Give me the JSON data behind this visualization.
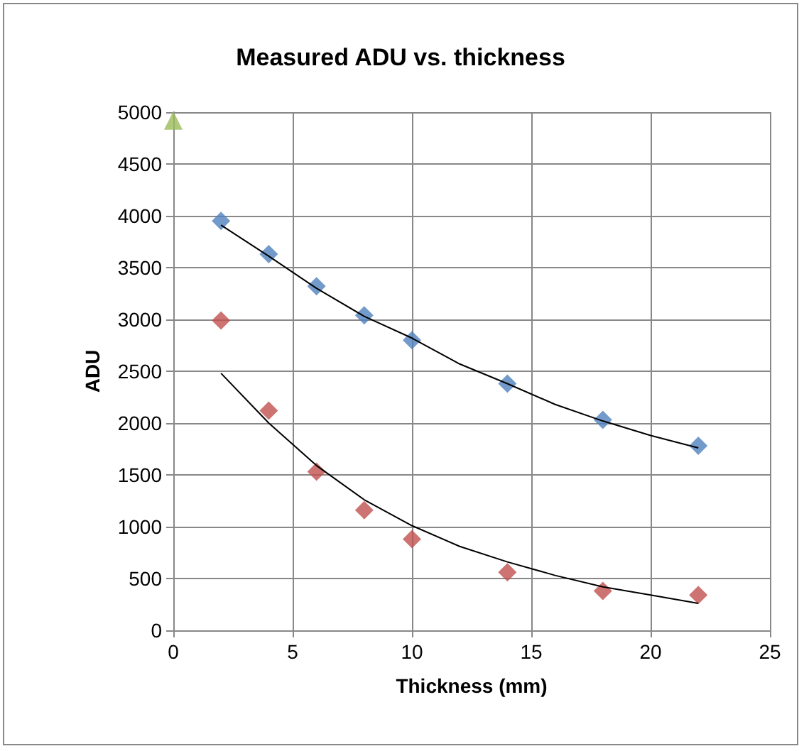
{
  "chart_data": {
    "type": "scatter",
    "title": "Measured ADU vs. thickness",
    "xlabel": "Thickness (mm)",
    "ylabel": "ADU",
    "xlim": [
      0,
      25
    ],
    "xticks": [
      0,
      5,
      10,
      15,
      20,
      25
    ],
    "ylim": [
      0,
      5000
    ],
    "yticks": [
      0,
      500,
      1000,
      1500,
      2000,
      2500,
      3000,
      3500,
      4000,
      4500,
      5000
    ],
    "grid": true,
    "marker": "diamond",
    "series": [
      {
        "color": "#4f81bd",
        "x": [
          2,
          4,
          6,
          8,
          10,
          14,
          18,
          22
        ],
        "values": [
          3950,
          3630,
          3320,
          3040,
          2800,
          2380,
          2030,
          1780
        ]
      },
      {
        "color": "#c0504d",
        "x": [
          2,
          4,
          6,
          8,
          10,
          14,
          18,
          22
        ],
        "values": [
          2990,
          2120,
          1530,
          1160,
          880,
          560,
          380,
          340
        ]
      },
      {
        "color": "#9bbb59",
        "marker": "triangle",
        "x": [
          0
        ],
        "values": [
          4920
        ]
      },
      {
        "type": "line",
        "color": "#000000",
        "marker": "none",
        "x": [
          2,
          4,
          6,
          8,
          10,
          12,
          14,
          16,
          18,
          20,
          22
        ],
        "values": [
          3910,
          3610,
          3300,
          3030,
          2820,
          2570,
          2380,
          2180,
          2020,
          1880,
          1760
        ]
      },
      {
        "type": "line",
        "color": "#000000",
        "marker": "none",
        "x": [
          2,
          4,
          6,
          8,
          10,
          12,
          14,
          16,
          18,
          20,
          22
        ],
        "values": [
          2480,
          2000,
          1590,
          1260,
          1010,
          810,
          660,
          530,
          420,
          340,
          260
        ]
      }
    ]
  }
}
